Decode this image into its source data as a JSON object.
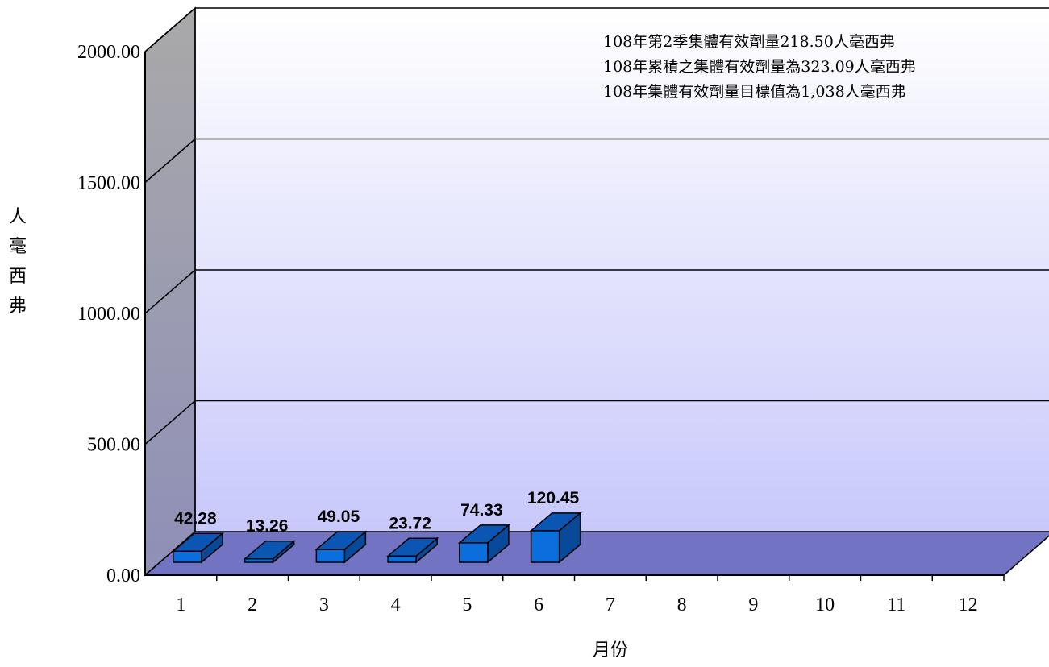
{
  "chart_data": {
    "type": "bar",
    "categories": [
      "1",
      "2",
      "3",
      "4",
      "5",
      "6",
      "7",
      "8",
      "9",
      "10",
      "11",
      "12"
    ],
    "series": [
      {
        "values": [
          42.28,
          13.26,
          49.05,
          23.72,
          74.33,
          120.45,
          null,
          null,
          null,
          null,
          null,
          null
        ],
        "data_labels": [
          "42.28",
          "13.26",
          "49.05",
          "23.72",
          "74.33",
          "120.45"
        ]
      }
    ],
    "yticks": [
      "0.00",
      "500.00",
      "1000.00",
      "1500.00",
      "2000.00"
    ],
    "ylim": [
      0,
      2000
    ],
    "xlabel": "月份",
    "ylabel": "人毫西弗",
    "annotations": [
      "108年第2季集體有效劑量218.50人毫西弗",
      "108年累積之集體有效劑量為323.09人毫西弗",
      "108年集體有效劑量目標值為1,038人毫西弗"
    ],
    "colors": {
      "bar_front": "#0a6fdc",
      "bar_top": "#0b56b3",
      "bar_side": "#084a99",
      "floor": "#7373c4"
    },
    "grid": true
  }
}
